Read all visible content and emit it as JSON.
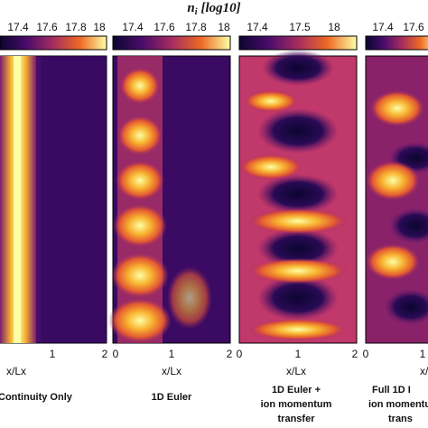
{
  "figure": {
    "title": {
      "symbol": "n",
      "subscript": "i",
      "unit": "[log10]"
    },
    "panels": [
      {
        "colorbar_ticks": [
          "17.4",
          "17.6",
          "17.8",
          "18"
        ],
        "x_ticks": [
          "1",
          "2"
        ],
        "x_label": "x/Lx",
        "caption": [
          "Continuity Only"
        ]
      },
      {
        "colorbar_ticks": [
          "17.4",
          "17.6",
          "17.8",
          "18"
        ],
        "x_ticks": [
          "0",
          "1",
          "2"
        ],
        "x_label": "x/Lx",
        "caption": [
          "1D Euler"
        ]
      },
      {
        "colorbar_ticks": [
          "17.4",
          "17.5",
          "18"
        ],
        "x_ticks": [
          "0",
          "1",
          "2"
        ],
        "x_label": "x/Lx",
        "caption": [
          "1D Euler +",
          "ion momentum",
          "transfer"
        ]
      },
      {
        "colorbar_ticks": [
          "17.4",
          "17.6"
        ],
        "x_ticks": [
          "0",
          "1"
        ],
        "x_label": "x/",
        "caption": [
          "Full 1D I",
          "ion momentu",
          "trans"
        ]
      }
    ]
  }
}
